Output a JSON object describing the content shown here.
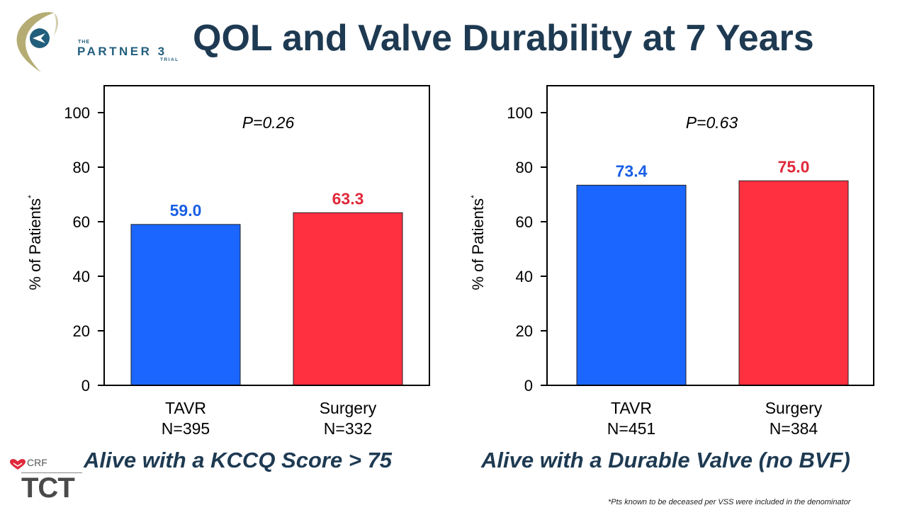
{
  "header": {
    "title": "QOL and Valve Durability at 7 Years",
    "logo": {
      "icon": "partner3-heart-logo-icon",
      "the": "THE",
      "name": "PARTNER 3",
      "trial": "TRIAL"
    }
  },
  "colors": {
    "title": "#1e3a52",
    "tavr": "#1a66ff",
    "surgery": "#ff3040",
    "tavr_label": "#1a5fe6",
    "surgery_label": "#e0283a"
  },
  "chart_data": [
    {
      "type": "bar",
      "title": "Alive with a KCCQ Score > 75",
      "ylabel": "% of Patients",
      "ylabel_superscript": "*",
      "ylim": [
        0,
        110
      ],
      "yticks": [
        0,
        20,
        40,
        60,
        80,
        100
      ],
      "categories": [
        "TAVR",
        "Surgery"
      ],
      "category_n": [
        "N=395",
        "N=332"
      ],
      "values": [
        59.0,
        63.3
      ],
      "value_labels": [
        "59.0",
        "63.3"
      ],
      "annotation": "P=0.26",
      "grid": false,
      "legend": "none"
    },
    {
      "type": "bar",
      "title": "Alive with a Durable Valve (no BVF)",
      "ylabel": "% of Patients",
      "ylabel_superscript": "*",
      "ylim": [
        0,
        110
      ],
      "yticks": [
        0,
        20,
        40,
        60,
        80,
        100
      ],
      "categories": [
        "TAVR",
        "Surgery"
      ],
      "category_n": [
        "N=451",
        "N=384"
      ],
      "values": [
        73.4,
        75.0
      ],
      "value_labels": [
        "73.4",
        "75.0"
      ],
      "annotation": "P=0.63",
      "grid": false,
      "legend": "none"
    }
  ],
  "footer": {
    "footnote": "*Pts known to be deceased per VSS were included in the denominator",
    "crf": "CRF",
    "tct": "TCT",
    "crf_icon": "crf-heart-icon"
  }
}
